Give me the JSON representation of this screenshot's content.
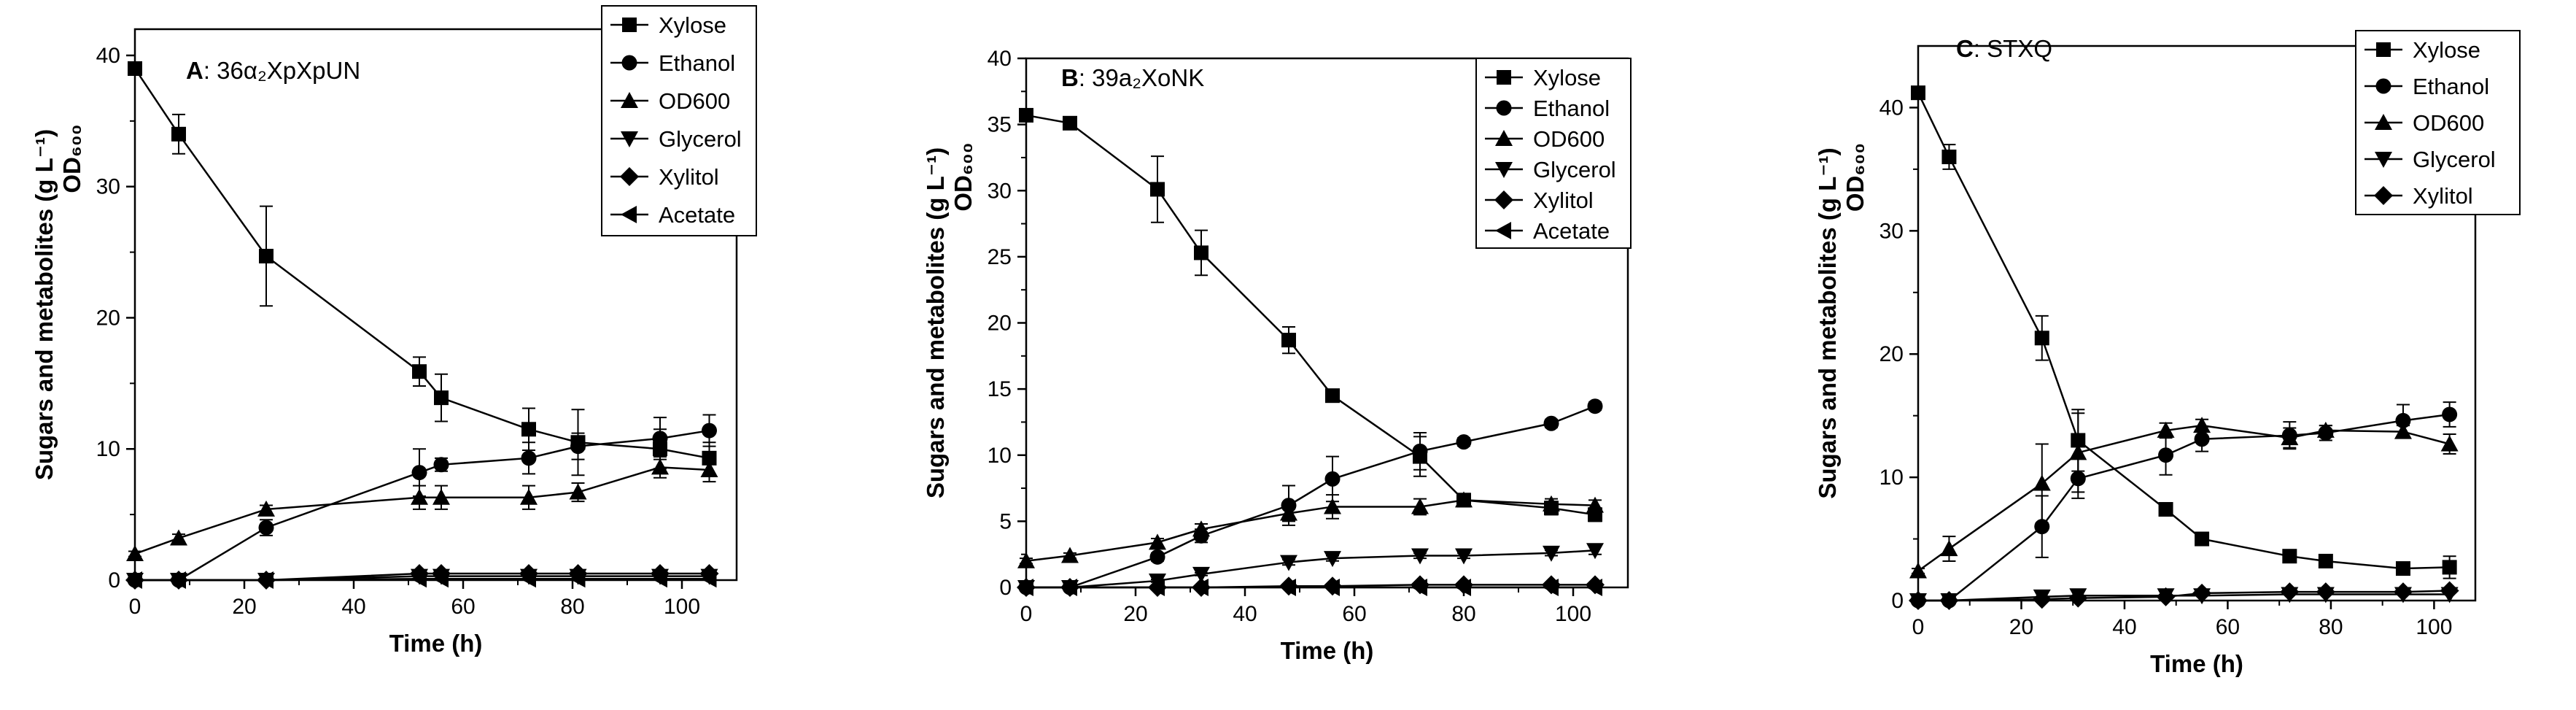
{
  "figure": {
    "colors": {
      "ink": "#000000",
      "background": "#ffffff"
    }
  },
  "chart_data": [
    {
      "type": "line",
      "panel_letter": "A",
      "title_rest": ": 36α₂XpXpUN",
      "xlabel": "Time (h)",
      "ylabel": "Sugars and metabolites (g L⁻¹)",
      "ylabel2": "OD₆₀₀",
      "xlim": [
        0,
        110
      ],
      "ylim": [
        0,
        42
      ],
      "xticks": [
        0,
        20,
        40,
        60,
        80,
        100
      ],
      "yticks": [
        0,
        10,
        20,
        30,
        40
      ],
      "legend_position": "top-right",
      "series": [
        {
          "name": "Xylose",
          "marker": "square",
          "x": [
            0,
            8,
            24,
            52,
            56,
            72,
            81,
            96,
            105
          ],
          "y": [
            39,
            34,
            24.7,
            15.9,
            13.9,
            11.5,
            10.5,
            10.0,
            9.3
          ],
          "err": [
            0.5,
            1.5,
            3.8,
            1.1,
            1.8,
            1.6,
            2.5,
            1.5,
            1.2
          ]
        },
        {
          "name": "Ethanol",
          "marker": "circle",
          "x": [
            0,
            8,
            24,
            52,
            56,
            72,
            81,
            96,
            105
          ],
          "y": [
            0,
            0,
            4.0,
            8.2,
            8.8,
            9.3,
            10.2,
            10.8,
            11.4
          ],
          "err": [
            0,
            0,
            0.6,
            1.8,
            0.5,
            1.2,
            1.0,
            1.6,
            1.2
          ]
        },
        {
          "name": "OD600",
          "marker": "triangle-up",
          "x": [
            0,
            8,
            24,
            52,
            56,
            72,
            81,
            96,
            105
          ],
          "y": [
            2.0,
            3.2,
            5.4,
            6.3,
            6.3,
            6.3,
            6.7,
            8.6,
            8.4
          ],
          "err": [
            0.2,
            0.3,
            0.3,
            0.9,
            0.9,
            0.9,
            0.7,
            0.8,
            0.9
          ]
        },
        {
          "name": "Glycerol",
          "marker": "triangle-down",
          "x": [
            0,
            8,
            24,
            52,
            56,
            72,
            81,
            96,
            105
          ],
          "y": [
            0,
            0,
            0,
            0.3,
            0.3,
            0.3,
            0.3,
            0.3,
            0.3
          ],
          "err": [
            0,
            0,
            0,
            0,
            0,
            0,
            0,
            0,
            0
          ]
        },
        {
          "name": "Xylitol",
          "marker": "diamond",
          "x": [
            0,
            8,
            24,
            52,
            56,
            72,
            81,
            96,
            105
          ],
          "y": [
            0,
            0,
            0,
            0.5,
            0.5,
            0.5,
            0.5,
            0.5,
            0.5
          ],
          "err": [
            0,
            0,
            0,
            0,
            0,
            0,
            0,
            0,
            0
          ]
        },
        {
          "name": "Acetate",
          "marker": "triangle-left",
          "x": [
            0,
            8,
            24,
            52,
            56,
            72,
            81,
            96,
            105
          ],
          "y": [
            0,
            0,
            0,
            0.1,
            0.1,
            0.1,
            0.1,
            0.1,
            0.1
          ],
          "err": [
            0,
            0,
            0,
            0,
            0,
            0,
            0,
            0,
            0
          ]
        }
      ]
    },
    {
      "type": "line",
      "panel_letter": "B",
      "title_rest": ": 39a₂XoNK",
      "xlabel": "Time (h)",
      "ylabel": "Sugars and metabolites (g L⁻¹)",
      "ylabel2": "OD₆₀₀",
      "xlim": [
        0,
        110
      ],
      "ylim": [
        0,
        40
      ],
      "xticks": [
        0,
        20,
        40,
        60,
        80,
        100
      ],
      "yticks": [
        0,
        5,
        10,
        15,
        20,
        25,
        30,
        35,
        40
      ],
      "legend_position": "top-right",
      "series": [
        {
          "name": "Xylose",
          "marker": "square",
          "x": [
            0,
            8,
            24,
            32,
            48,
            56,
            72,
            80,
            96,
            104
          ],
          "y": [
            35.7,
            35.1,
            30.1,
            25.3,
            18.7,
            14.5,
            9.9,
            6.6,
            6.0,
            5.5
          ],
          "err": [
            0.3,
            0.3,
            2.5,
            1.7,
            1.0,
            0.2,
            1.5,
            0.5,
            0.5,
            0.5
          ]
        },
        {
          "name": "Ethanol",
          "marker": "circle",
          "x": [
            0,
            8,
            24,
            32,
            48,
            56,
            72,
            80,
            96,
            104
          ],
          "y": [
            0,
            0,
            2.3,
            3.9,
            6.2,
            8.2,
            10.3,
            11.0,
            12.4,
            13.7
          ],
          "err": [
            0,
            0,
            0.3,
            0.5,
            1.5,
            1.7,
            1.4,
            0.3,
            0.3,
            0.3
          ]
        },
        {
          "name": "OD600",
          "marker": "triangle-up",
          "x": [
            0,
            8,
            24,
            32,
            48,
            56,
            72,
            80,
            96,
            104
          ],
          "y": [
            2.0,
            2.4,
            3.4,
            4.4,
            5.6,
            6.1,
            6.1,
            6.6,
            6.3,
            6.2
          ],
          "err": [
            0.2,
            0.2,
            0.3,
            0.4,
            0.6,
            0.9,
            0.6,
            0.4,
            0.4,
            0.4
          ]
        },
        {
          "name": "Glycerol",
          "marker": "triangle-down",
          "x": [
            0,
            8,
            24,
            32,
            48,
            56,
            72,
            80,
            96,
            104
          ],
          "y": [
            0,
            0,
            0.5,
            1.0,
            1.9,
            2.2,
            2.4,
            2.4,
            2.6,
            2.8
          ],
          "err": [
            0,
            0,
            0.1,
            0.1,
            0.2,
            0.2,
            0.2,
            0.2,
            0.2,
            0.3
          ]
        },
        {
          "name": "Xylitol",
          "marker": "diamond",
          "x": [
            0,
            8,
            24,
            32,
            48,
            56,
            72,
            80,
            96,
            104
          ],
          "y": [
            0,
            0,
            0,
            0,
            0.1,
            0.1,
            0.2,
            0.2,
            0.2,
            0.2
          ],
          "err": [
            0,
            0,
            0,
            0,
            0,
            0,
            0,
            0,
            0,
            0
          ]
        },
        {
          "name": "Acetate",
          "marker": "triangle-left",
          "x": [
            0,
            8,
            24,
            32,
            48,
            56,
            72,
            80,
            96,
            104
          ],
          "y": [
            0,
            0,
            0,
            0,
            0,
            0,
            0,
            0,
            0,
            0
          ],
          "err": [
            0,
            0,
            0,
            0,
            0,
            0,
            0,
            0,
            0,
            0
          ]
        }
      ]
    },
    {
      "type": "line",
      "panel_letter": "C",
      "title_rest": ": STXQ",
      "xlabel": "Time (h)",
      "ylabel": "Sugars and metabolites (g L⁻¹)",
      "ylabel2": "OD₆₀₀",
      "xlim": [
        0,
        108
      ],
      "ylim": [
        0,
        45
      ],
      "xticks": [
        0,
        20,
        40,
        60,
        80,
        100
      ],
      "yticks": [
        0,
        10,
        20,
        30,
        40
      ],
      "legend_position": "top-right",
      "series": [
        {
          "name": "Xylose",
          "marker": "square",
          "x": [
            0,
            6,
            24,
            31,
            48,
            55,
            72,
            79,
            94,
            103
          ],
          "y": [
            41.2,
            36.0,
            21.3,
            13.0,
            7.4,
            5.0,
            3.6,
            3.2,
            2.6,
            2.7
          ],
          "err": [
            0.3,
            1.0,
            1.8,
            2.5,
            0.2,
            0.2,
            0.2,
            0.2,
            0.5,
            0.9
          ]
        },
        {
          "name": "Ethanol",
          "marker": "circle",
          "x": [
            0,
            6,
            24,
            31,
            48,
            55,
            72,
            79,
            94,
            103
          ],
          "y": [
            0,
            0,
            6.0,
            9.9,
            11.8,
            13.1,
            13.4,
            13.6,
            14.6,
            15.1
          ],
          "err": [
            0,
            0,
            2.5,
            1.6,
            1.6,
            1.0,
            1.1,
            0.6,
            1.3,
            1.0
          ]
        },
        {
          "name": "OD600",
          "marker": "triangle-up",
          "x": [
            0,
            6,
            24,
            31,
            48,
            55,
            72,
            79,
            94,
            103
          ],
          "y": [
            2.4,
            4.2,
            9.5,
            12.0,
            13.8,
            14.2,
            13.2,
            13.8,
            13.7,
            12.7
          ],
          "err": [
            0.2,
            1.0,
            3.2,
            3.2,
            0.6,
            0.5,
            0.8,
            0.4,
            0.5,
            0.8
          ]
        },
        {
          "name": "Glycerol",
          "marker": "triangle-down",
          "x": [
            0,
            6,
            24,
            31,
            48,
            55,
            72,
            79,
            94,
            103
          ],
          "y": [
            0,
            0,
            0.3,
            0.4,
            0.4,
            0.4,
            0.5,
            0.5,
            0.5,
            0.5
          ],
          "err": [
            0,
            0,
            0,
            0,
            0,
            0,
            0,
            0,
            0,
            0
          ]
        },
        {
          "name": "Xylitol",
          "marker": "diamond",
          "x": [
            0,
            6,
            24,
            31,
            48,
            55,
            72,
            79,
            94,
            103
          ],
          "y": [
            0,
            0,
            0.1,
            0.2,
            0.3,
            0.6,
            0.7,
            0.7,
            0.7,
            0.8
          ],
          "err": [
            0,
            0,
            0,
            0,
            0,
            0,
            0,
            0,
            0,
            0
          ]
        }
      ]
    }
  ]
}
